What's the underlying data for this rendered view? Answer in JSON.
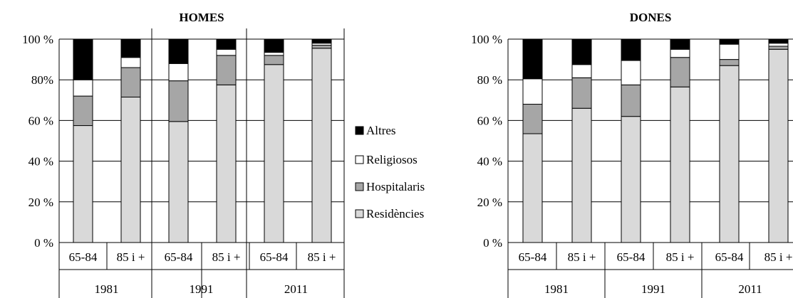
{
  "legend": {
    "items": [
      {
        "label": "Altres",
        "color": "#000000"
      },
      {
        "label": "Religiosos",
        "color": "#ffffff"
      },
      {
        "label": "Hospitalaris",
        "color": "#a6a6a6"
      },
      {
        "label": "Residències",
        "color": "#d9d9d9"
      }
    ]
  },
  "chart_data": [
    {
      "type": "bar",
      "stacked": true,
      "percent": true,
      "title": "HOMES",
      "ylim": [
        0,
        100
      ],
      "y_ticks": [
        "0 %",
        "20 %",
        "40 %",
        "60 %",
        "80%",
        "100 %"
      ],
      "grid": true,
      "groups": [
        "1981",
        "1991",
        "2011"
      ],
      "categories": [
        "65-84",
        "85 i +",
        "65-84",
        "85 i +",
        "65-84",
        "85 i +"
      ],
      "series": [
        {
          "name": "Residències",
          "values": [
            57.5,
            71.5,
            59.5,
            77.5,
            87.5,
            95.5
          ]
        },
        {
          "name": "Hospitalaris",
          "values": [
            14.5,
            14.5,
            20,
            14.5,
            4.5,
            1.5
          ]
        },
        {
          "name": "Religiosos",
          "values": [
            8,
            5,
            8.5,
            3,
            1.5,
            1
          ]
        },
        {
          "name": "Altres",
          "values": [
            20,
            9,
            12,
            5,
            6.5,
            2
          ]
        }
      ]
    },
    {
      "type": "bar",
      "stacked": true,
      "percent": true,
      "title": "DONES",
      "ylim": [
        0,
        100
      ],
      "y_ticks": [
        "0 %",
        "20 %",
        "40 %",
        "60 %",
        "80 %",
        "100 %"
      ],
      "grid": true,
      "groups": [
        "1981",
        "1991",
        "2011"
      ],
      "categories": [
        "65-84",
        "85 i +",
        "65-84",
        "85 i +",
        "65-84",
        "85 i +"
      ],
      "series": [
        {
          "name": "Residències",
          "values": [
            53.5,
            66,
            62,
            76.5,
            87,
            95
          ]
        },
        {
          "name": "Hospitalaris",
          "values": [
            14.5,
            15,
            15.5,
            14.5,
            3,
            1.5
          ]
        },
        {
          "name": "Religiosos",
          "values": [
            12.5,
            6.5,
            12,
            4,
            7.5,
            1.5
          ]
        },
        {
          "name": "Altres",
          "values": [
            19.5,
            12.5,
            10.5,
            5,
            2.5,
            2
          ]
        }
      ]
    }
  ]
}
